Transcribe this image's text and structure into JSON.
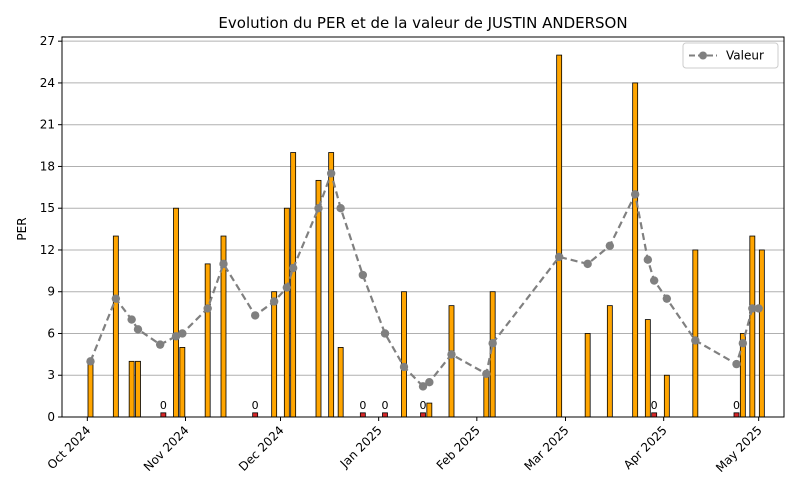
{
  "chart_data": {
    "type": "bar",
    "title": "Evolution du PER et de la valeur de JUSTIN ANDERSON",
    "ylabel": "PER",
    "xlabel": "",
    "ylim": [
      0,
      27.3
    ],
    "yticks": [
      0,
      3,
      6,
      9,
      12,
      15,
      18,
      21,
      24,
      27
    ],
    "xlim": [
      "2024-09-23",
      "2025-05-09"
    ],
    "xticks": [
      {
        "date": "2024-10-01",
        "label": "Oct 2024"
      },
      {
        "date": "2024-11-01",
        "label": "Nov 2024"
      },
      {
        "date": "2024-12-01",
        "label": "Dec 2024"
      },
      {
        "date": "2025-01-01",
        "label": "Jan 2025"
      },
      {
        "date": "2025-02-01",
        "label": "Feb 2025"
      },
      {
        "date": "2025-03-01",
        "label": "Mar 2025"
      },
      {
        "date": "2025-04-01",
        "label": "Apr 2025"
      },
      {
        "date": "2025-05-01",
        "label": "May 2025"
      }
    ],
    "grid": "y",
    "legend": {
      "position": "top-right",
      "entries": [
        "Valeur"
      ]
    },
    "colors": {
      "bar": "#FFA500",
      "zero_bar": "#D62728",
      "edge": "#000000",
      "line": "#808080",
      "grid": "#b0b0b0"
    },
    "bars": [
      {
        "date": "2024-10-02",
        "per": 4
      },
      {
        "date": "2024-10-10",
        "per": 13
      },
      {
        "date": "2024-10-15",
        "per": 4
      },
      {
        "date": "2024-10-17",
        "per": 4
      },
      {
        "date": "2024-10-25",
        "per": 0,
        "label": "0"
      },
      {
        "date": "2024-10-29",
        "per": 15
      },
      {
        "date": "2024-10-31",
        "per": 5
      },
      {
        "date": "2024-11-08",
        "per": 11
      },
      {
        "date": "2024-11-13",
        "per": 13
      },
      {
        "date": "2024-11-23",
        "per": 0,
        "label": "0"
      },
      {
        "date": "2024-11-29",
        "per": 9
      },
      {
        "date": "2024-12-03",
        "per": 15
      },
      {
        "date": "2024-12-05",
        "per": 19
      },
      {
        "date": "2024-12-13",
        "per": 17
      },
      {
        "date": "2024-12-17",
        "per": 19
      },
      {
        "date": "2024-12-20",
        "per": 5
      },
      {
        "date": "2024-12-27",
        "per": 0,
        "label": "0"
      },
      {
        "date": "2025-01-03",
        "per": 0,
        "label": "0"
      },
      {
        "date": "2025-01-09",
        "per": 9
      },
      {
        "date": "2025-01-15",
        "per": 0,
        "label": "0"
      },
      {
        "date": "2025-01-17",
        "per": 1
      },
      {
        "date": "2025-01-24",
        "per": 8
      },
      {
        "date": "2025-02-04",
        "per": 3
      },
      {
        "date": "2025-02-06",
        "per": 9
      },
      {
        "date": "2025-02-27",
        "per": 26
      },
      {
        "date": "2025-03-08",
        "per": 6
      },
      {
        "date": "2025-03-15",
        "per": 8
      },
      {
        "date": "2025-03-23",
        "per": 24
      },
      {
        "date": "2025-03-27",
        "per": 7
      },
      {
        "date": "2025-03-29",
        "per": 0,
        "label": "0"
      },
      {
        "date": "2025-04-02",
        "per": 3
      },
      {
        "date": "2025-04-11",
        "per": 12
      },
      {
        "date": "2025-04-24",
        "per": 0,
        "label": "0"
      },
      {
        "date": "2025-04-26",
        "per": 6
      },
      {
        "date": "2025-04-29",
        "per": 13
      },
      {
        "date": "2025-05-02",
        "per": 12
      }
    ],
    "series": [
      {
        "name": "Valeur",
        "style": "dashed",
        "marker": "circle",
        "points": [
          {
            "date": "2024-10-02",
            "y": 4.0
          },
          {
            "date": "2024-10-10",
            "y": 8.5
          },
          {
            "date": "2024-10-15",
            "y": 7.0
          },
          {
            "date": "2024-10-17",
            "y": 6.3
          },
          {
            "date": "2024-10-24",
            "y": 5.2
          },
          {
            "date": "2024-10-29",
            "y": 5.8
          },
          {
            "date": "2024-10-31",
            "y": 6.0
          },
          {
            "date": "2024-11-08",
            "y": 7.8
          },
          {
            "date": "2024-11-13",
            "y": 11.0
          },
          {
            "date": "2024-11-23",
            "y": 7.3
          },
          {
            "date": "2024-11-29",
            "y": 8.3
          },
          {
            "date": "2024-12-03",
            "y": 9.3
          },
          {
            "date": "2024-12-05",
            "y": 10.7
          },
          {
            "date": "2024-12-13",
            "y": 15.0
          },
          {
            "date": "2024-12-17",
            "y": 17.5
          },
          {
            "date": "2024-12-20",
            "y": 15.0
          },
          {
            "date": "2024-12-27",
            "y": 10.2
          },
          {
            "date": "2025-01-03",
            "y": 6.0
          },
          {
            "date": "2025-01-09",
            "y": 3.6
          },
          {
            "date": "2025-01-15",
            "y": 2.2
          },
          {
            "date": "2025-01-17",
            "y": 2.5
          },
          {
            "date": "2025-01-24",
            "y": 4.5
          },
          {
            "date": "2025-02-04",
            "y": 3.1
          },
          {
            "date": "2025-02-06",
            "y": 5.3
          },
          {
            "date": "2025-02-27",
            "y": 11.5
          },
          {
            "date": "2025-03-08",
            "y": 11.0
          },
          {
            "date": "2025-03-15",
            "y": 12.3
          },
          {
            "date": "2025-03-23",
            "y": 16.0
          },
          {
            "date": "2025-03-27",
            "y": 11.3
          },
          {
            "date": "2025-03-29",
            "y": 9.8
          },
          {
            "date": "2025-04-02",
            "y": 8.5
          },
          {
            "date": "2025-04-11",
            "y": 5.5
          },
          {
            "date": "2025-04-24",
            "y": 3.8
          },
          {
            "date": "2025-04-26",
            "y": 5.3
          },
          {
            "date": "2025-04-29",
            "y": 7.8
          },
          {
            "date": "2025-05-01",
            "y": 7.8
          }
        ]
      }
    ]
  }
}
